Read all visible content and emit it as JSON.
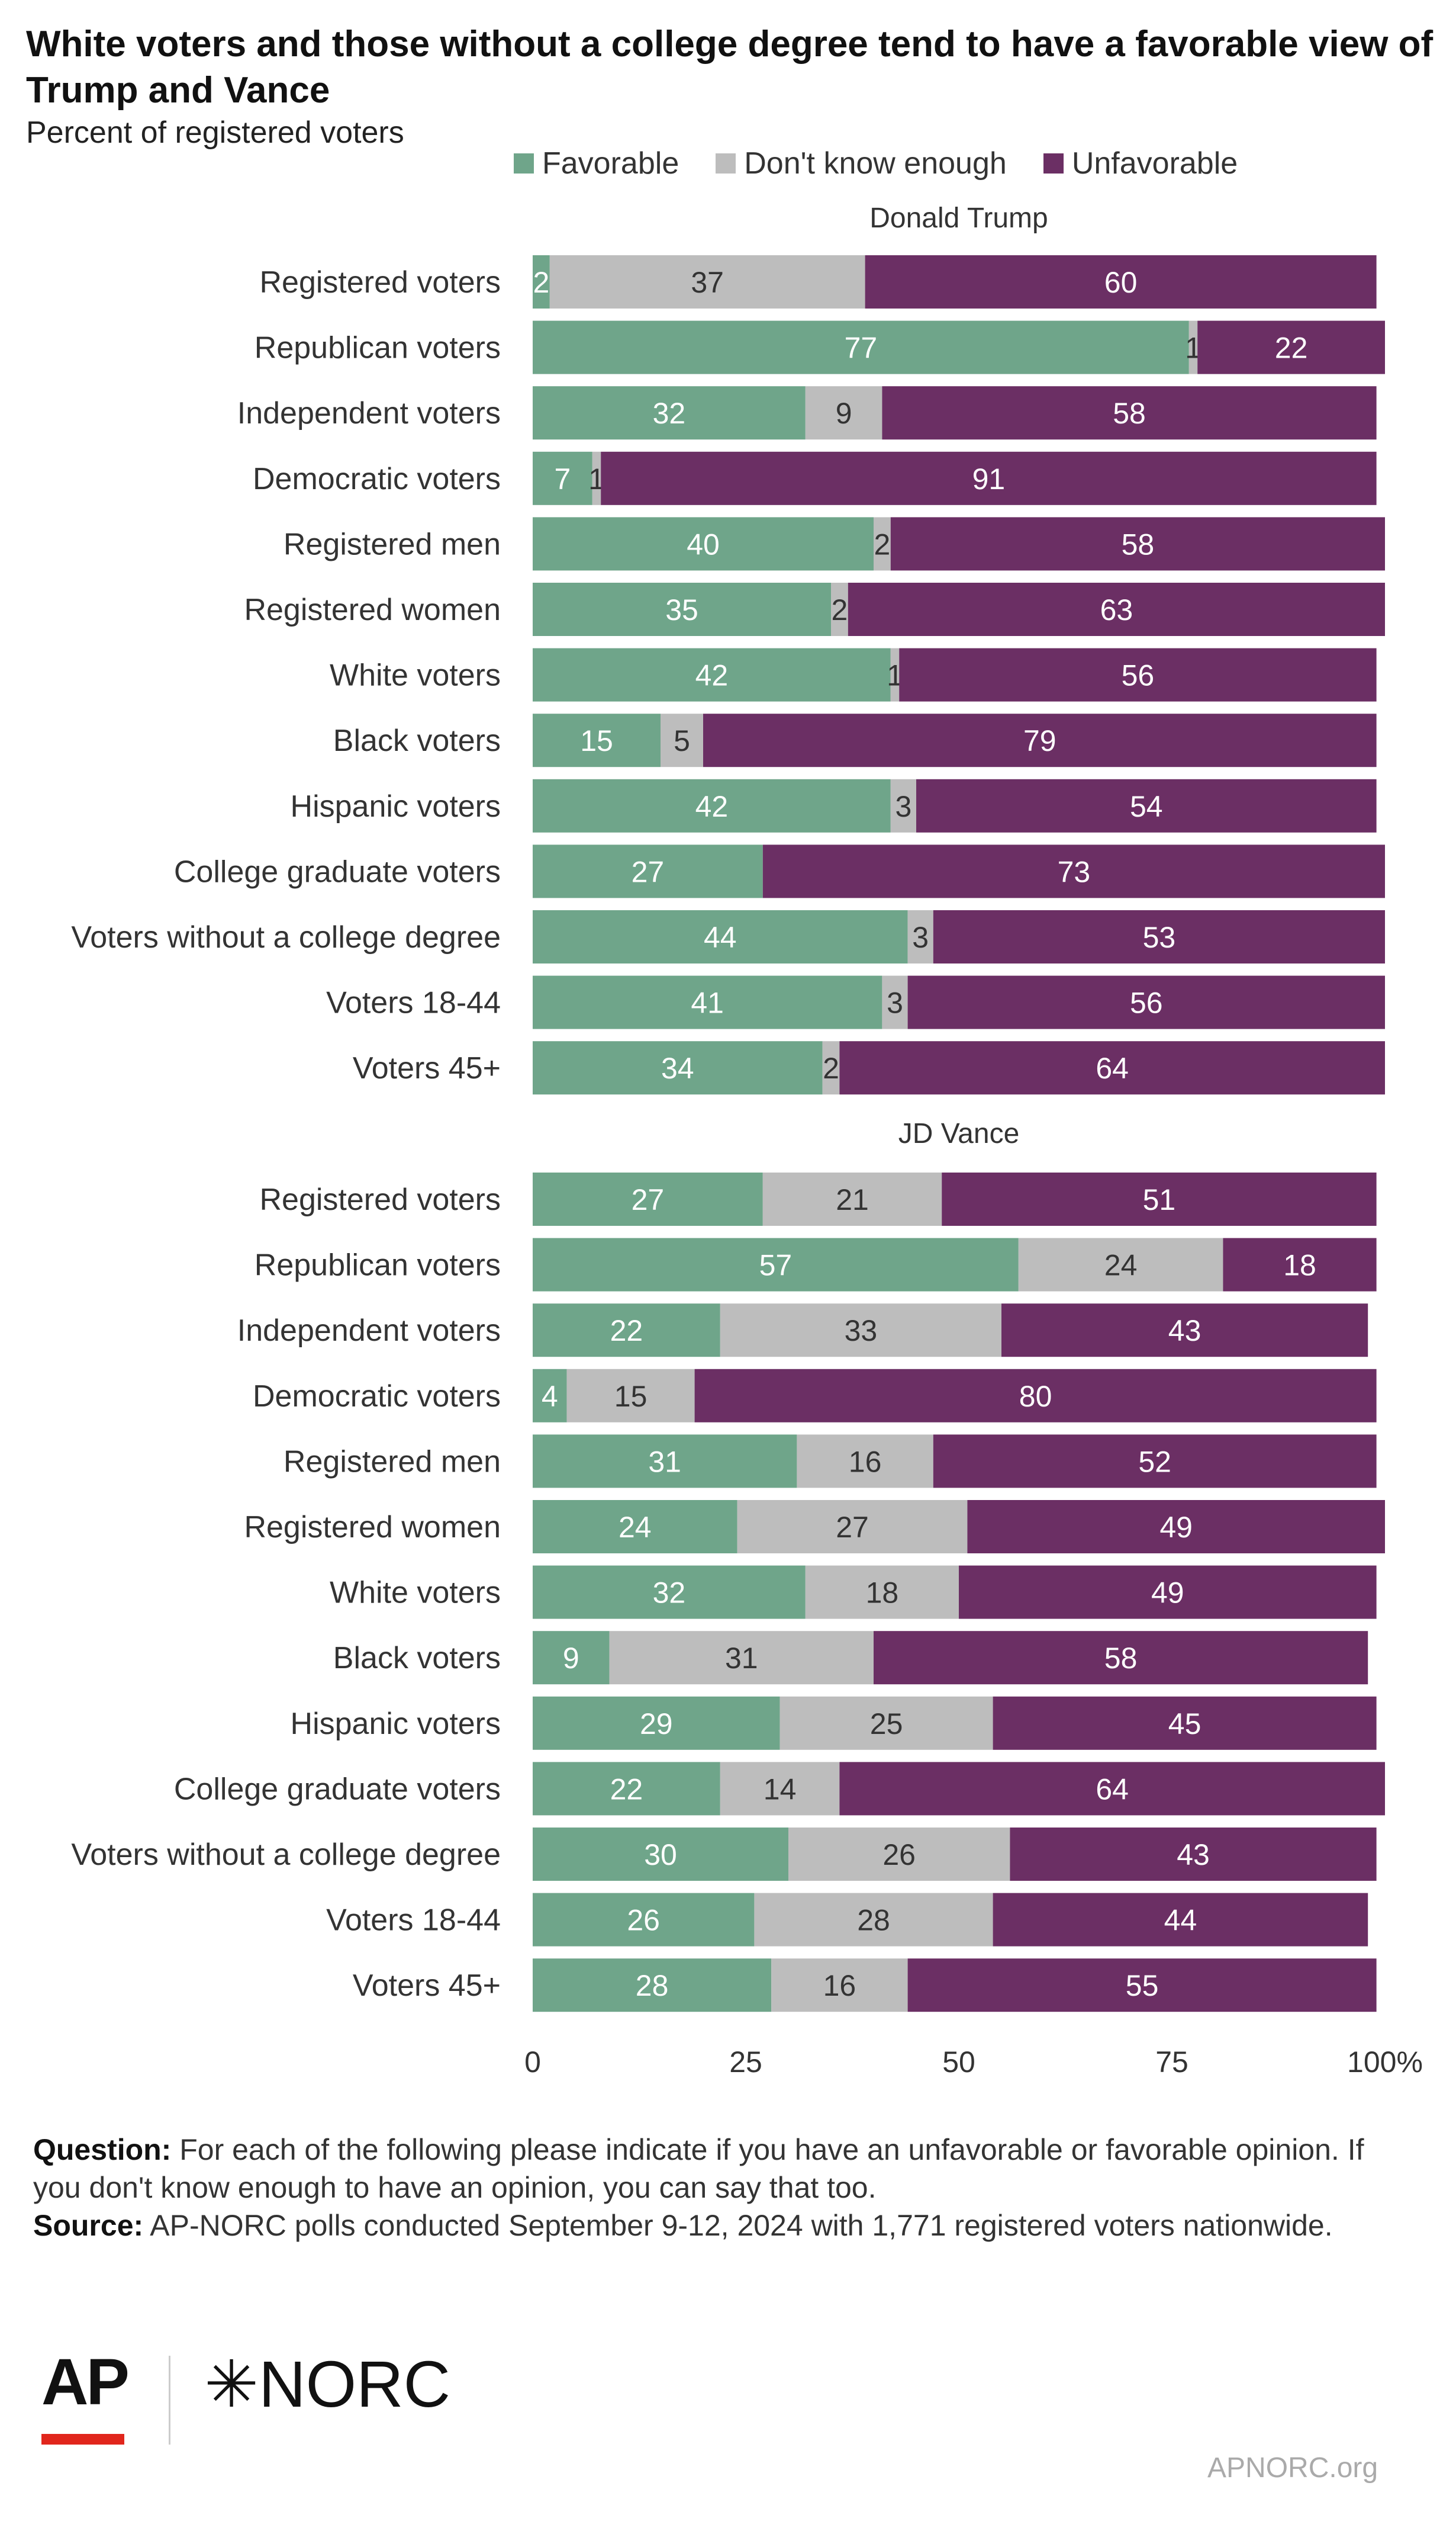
{
  "chart_data": {
    "type": "bar",
    "orientation": "horizontal",
    "stacked": true,
    "title": "White voters and those without a college degree tend to have a favorable view of Trump and Vance",
    "subtitle": "Percent of registered voters",
    "legend": [
      "Favorable",
      "Don't know enough",
      "Unfavorable"
    ],
    "legend_position": "top",
    "xlim": [
      0,
      100
    ],
    "xticks": [
      "0",
      "25",
      "50",
      "75",
      "100%"
    ],
    "colors": {
      "favorable": "#6fa58a",
      "dont_know": "#bdbdbd",
      "unfavorable": "#6b2f64"
    },
    "panels": [
      {
        "name": "Donald Trump",
        "categories": [
          "Registered voters",
          "Republican voters",
          "Independent voters",
          "Democratic voters",
          "Registered men",
          "Registered women",
          "White voters",
          "Black voters",
          "Hispanic voters",
          "College graduate voters",
          "Voters without a college degree",
          "Voters 18-44",
          "Voters  45+"
        ],
        "series": [
          {
            "name": "Favorable",
            "values": [
              2,
              77,
              32,
              7,
              40,
              35,
              42,
              15,
              42,
              27,
              44,
              41,
              34
            ]
          },
          {
            "name": "Don't know enough",
            "values": [
              37,
              1,
              9,
              1,
              2,
              2,
              1,
              5,
              3,
              null,
              3,
              3,
              2
            ]
          },
          {
            "name": "Unfavorable",
            "values": [
              60,
              22,
              58,
              91,
              58,
              63,
              56,
              79,
              54,
              73,
              53,
              56,
              64
            ]
          }
        ]
      },
      {
        "name": "JD Vance",
        "categories": [
          "Registered voters",
          "Republican voters",
          "Independent voters",
          "Democratic voters",
          "Registered men",
          "Registered women",
          "White voters",
          "Black voters",
          "Hispanic voters",
          "College graduate voters",
          "Voters without a college degree",
          "Voters 18-44",
          "Voters  45+"
        ],
        "series": [
          {
            "name": "Favorable",
            "values": [
              27,
              57,
              22,
              4,
              31,
              24,
              32,
              9,
              29,
              22,
              30,
              26,
              28
            ]
          },
          {
            "name": "Don't know enough",
            "values": [
              21,
              24,
              33,
              15,
              16,
              27,
              18,
              31,
              25,
              14,
              26,
              28,
              16
            ]
          },
          {
            "name": "Unfavorable",
            "values": [
              51,
              18,
              43,
              80,
              52,
              49,
              49,
              58,
              45,
              64,
              43,
              44,
              55
            ]
          }
        ]
      }
    ]
  },
  "footer": {
    "question_label": "Question:",
    "question_text": " For each of the following please indicate if you have an unfavorable or favorable opinion. If you don't know enough to have an opinion, you can say that too.",
    "source_label": "Source:",
    "source_text": " AP-NORC polls conducted September 9-12, 2024 with 1,771 registered voters nationwide."
  },
  "logos": {
    "ap": "AP",
    "norc": "✳NORC"
  },
  "site": "APNORC.org"
}
